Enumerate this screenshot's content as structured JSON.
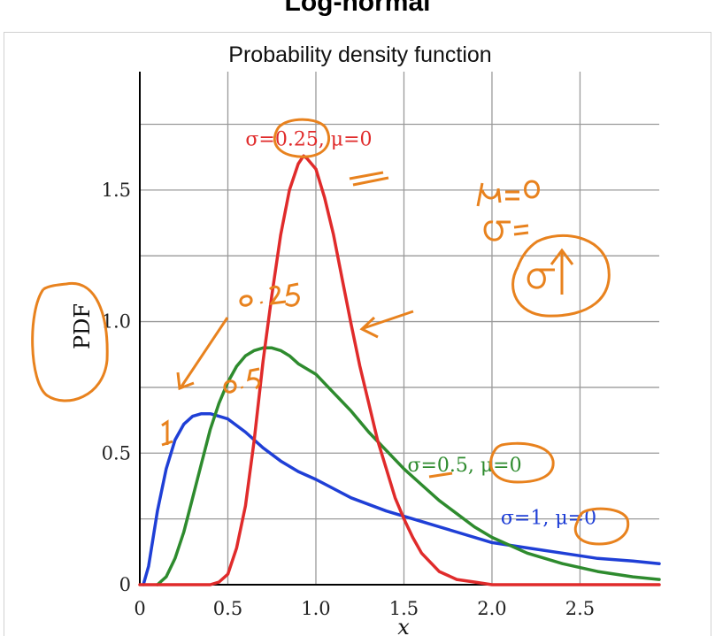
{
  "page": {
    "title": "Log-normal"
  },
  "chart_data": {
    "type": "line",
    "title": "Probability density function",
    "xlabel": "x",
    "ylabel": "PDF",
    "xlim": [
      0,
      2.95
    ],
    "ylim": [
      0,
      1.95
    ],
    "grid": true,
    "x_ticks": [
      {
        "value": 0,
        "label": "0"
      },
      {
        "value": 0.5,
        "label": "0.5"
      },
      {
        "value": 1.0,
        "label": "1.0"
      },
      {
        "value": 1.5,
        "label": "1.5"
      },
      {
        "value": 2.0,
        "label": "2.0"
      },
      {
        "value": 2.5,
        "label": "2.5"
      }
    ],
    "y_ticks": [
      {
        "value": 0,
        "label": "0"
      },
      {
        "value": 0.5,
        "label": "0.5"
      },
      {
        "value": 1.0,
        "label": "1.0"
      },
      {
        "value": 1.5,
        "label": "1.5"
      }
    ],
    "x_grid": [
      0.5,
      1.0,
      1.5,
      2.0,
      2.5
    ],
    "y_grid": [
      0.25,
      0.5,
      0.75,
      1.0,
      1.25,
      1.5,
      1.75
    ],
    "series": [
      {
        "label": "σ=1, μ=0",
        "sigma": 1,
        "mu": 0,
        "color": "#1f3fd6",
        "label_at": {
          "x": 2.05,
          "y": 0.23
        },
        "x": [
          0.02,
          0.05,
          0.1,
          0.15,
          0.2,
          0.25,
          0.3,
          0.35,
          0.4,
          0.45,
          0.5,
          0.6,
          0.7,
          0.8,
          0.9,
          1.0,
          1.2,
          1.4,
          1.6,
          1.8,
          2.0,
          2.2,
          2.4,
          2.6,
          2.8,
          2.95
        ],
        "y": [
          0.0,
          0.07,
          0.28,
          0.44,
          0.55,
          0.61,
          0.64,
          0.65,
          0.65,
          0.64,
          0.63,
          0.58,
          0.52,
          0.47,
          0.43,
          0.4,
          0.33,
          0.28,
          0.24,
          0.2,
          0.16,
          0.14,
          0.12,
          0.1,
          0.09,
          0.08
        ]
      },
      {
        "label": "σ=0.5, μ=0",
        "sigma": 0.5,
        "mu": 0,
        "color": "#2e8b2e",
        "label_at": {
          "x": 1.52,
          "y": 0.43
        },
        "x": [
          0.1,
          0.15,
          0.2,
          0.25,
          0.3,
          0.35,
          0.4,
          0.45,
          0.5,
          0.55,
          0.6,
          0.65,
          0.7,
          0.75,
          0.8,
          0.85,
          0.9,
          1.0,
          1.1,
          1.2,
          1.3,
          1.4,
          1.5,
          1.6,
          1.7,
          1.8,
          1.9,
          2.0,
          2.2,
          2.4,
          2.6,
          2.8,
          2.95
        ],
        "y": [
          0.0,
          0.03,
          0.1,
          0.2,
          0.33,
          0.46,
          0.59,
          0.69,
          0.77,
          0.83,
          0.87,
          0.89,
          0.9,
          0.9,
          0.89,
          0.87,
          0.84,
          0.8,
          0.73,
          0.66,
          0.58,
          0.51,
          0.44,
          0.38,
          0.32,
          0.27,
          0.22,
          0.18,
          0.12,
          0.08,
          0.05,
          0.03,
          0.02
        ]
      },
      {
        "label": "σ=0.25, μ=0",
        "sigma": 0.25,
        "mu": 0,
        "color": "#e02b2b",
        "label_at": {
          "x": 0.6,
          "y": 1.67
        },
        "x": [
          0.0,
          0.4,
          0.45,
          0.5,
          0.55,
          0.6,
          0.65,
          0.7,
          0.75,
          0.8,
          0.85,
          0.9,
          0.93,
          0.95,
          1.0,
          1.05,
          1.1,
          1.15,
          1.2,
          1.25,
          1.3,
          1.35,
          1.4,
          1.45,
          1.5,
          1.55,
          1.6,
          1.7,
          1.8,
          1.9,
          2.0,
          2.2,
          2.5,
          2.95
        ],
        "y": [
          0.0,
          0.0,
          0.01,
          0.04,
          0.14,
          0.3,
          0.55,
          0.85,
          1.1,
          1.33,
          1.5,
          1.6,
          1.63,
          1.62,
          1.58,
          1.47,
          1.33,
          1.16,
          0.99,
          0.83,
          0.69,
          0.55,
          0.44,
          0.33,
          0.25,
          0.18,
          0.12,
          0.05,
          0.02,
          0.01,
          0.0,
          0.0,
          0.0,
          0.0
        ]
      }
    ]
  }
}
